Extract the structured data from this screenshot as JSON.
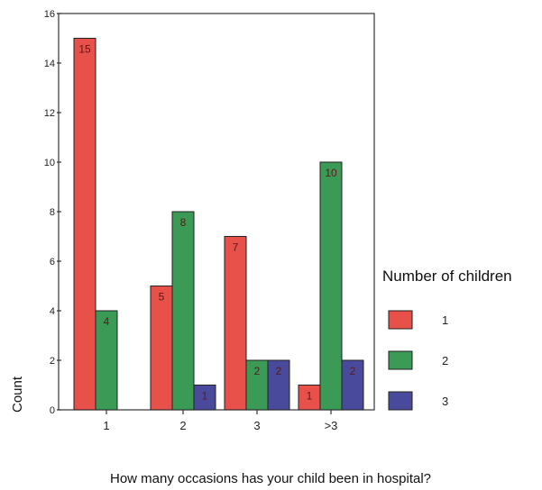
{
  "chart_data": {
    "type": "bar",
    "categories": [
      "1",
      "2",
      "3",
      ">3"
    ],
    "series": [
      {
        "name": "1",
        "values": [
          15,
          5,
          7,
          1
        ],
        "color": "#e8504a"
      },
      {
        "name": "2",
        "values": [
          4,
          8,
          2,
          10
        ],
        "color": "#3a9a56"
      },
      {
        "name": "3",
        "values": [
          0,
          1,
          2,
          2
        ],
        "color": "#4a4a9c"
      }
    ],
    "title": "",
    "xlabel": "How many occasions has your child been in hospital?",
    "ylabel": "Count",
    "ylim": [
      0,
      16
    ],
    "yticks": [
      "0",
      "2",
      "4",
      "6",
      "8",
      "10",
      "12",
      "14",
      "16"
    ],
    "legend_title": "Number of children",
    "legend_position": "right",
    "grid": false
  }
}
